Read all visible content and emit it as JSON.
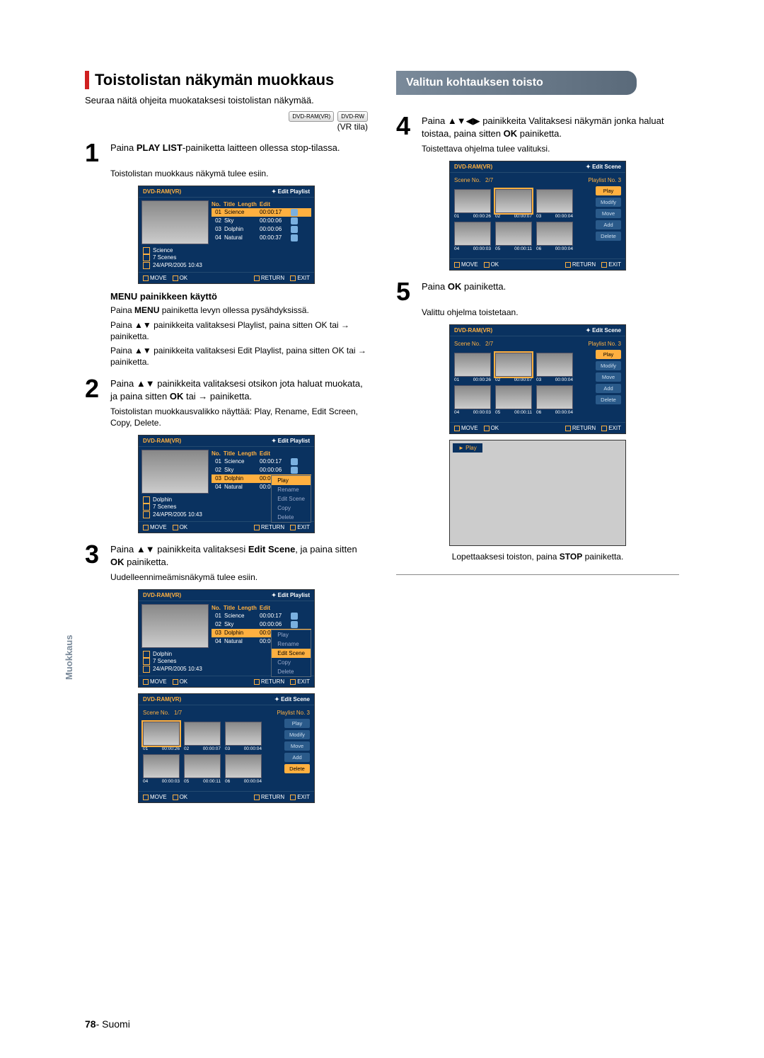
{
  "left": {
    "title": "Toistolistan näkymän muokkaus",
    "intro1": "Seuraa näitä ohjeita muokataksesi toistolistan näkymää.",
    "disc1": "DVD-RAM",
    "disc2": "DVD-RW",
    "vr": "(VR tila)",
    "step1_a": "Paina ",
    "step1_b": "PLAY LIST",
    "step1_c": "-painiketta laitteen ollessa stop-tilassa.",
    "step1_note": "Toistolistan muokkaus näkymä tulee esiin.",
    "menu_head": "MENU painikkeen käyttö",
    "menu_1a": "Paina ",
    "menu_1b": "MENU",
    "menu_1c": " painiketta levyn ollessa pysähdyksissä.",
    "menu_2": "Paina ▲▼ painikkeita valitaksesi Playlist, paina sitten OK tai → painiketta.",
    "menu_3": "Paina ▲▼ painikkeita valitaksesi Edit Playlist, paina sitten OK tai → painiketta.",
    "step2_a": "Paina ▲▼ painikkeita valitaksesi otsikon jota haluat muokata, ja paina sitten ",
    "step2_b": "OK",
    "step2_c": " tai → painiketta.",
    "step2_note": "Toistolistan muokkausvalikko näyttää: Play, Rename, Edit Screen, Copy, Delete.",
    "step3_a": "Paina ▲▼ painikkeita valitaksesi ",
    "step3_b": "Edit Scene",
    "step3_c": ", ja paina sitten ",
    "step3_d": "OK",
    "step3_e": " painiketta.",
    "step3_note": "Uudelleennimeämisnäkymä tulee esiin."
  },
  "right": {
    "banner": "Valitun kohtauksen toisto",
    "step4_a": "Paina ▲▼◀▶ painikkeita Valitaksesi näkymän jonka haluat toistaa, paina sitten ",
    "step4_b": "OK",
    "step4_c": " painiketta.",
    "step4_note": "Toistettava ohjelma tulee valituksi.",
    "step5_a": "Paina ",
    "step5_b": "OK",
    "step5_c": " painiketta.",
    "step5_note": "Valittu ohjelma toistetaan.",
    "stop": "Lopettaaksesi toiston, paina STOP painiketta."
  },
  "osd": {
    "header_left": "DVD-RAM(VR)",
    "header_playlist": "Edit Playlist",
    "header_scene": "Edit Scene",
    "list_head": {
      "no": "No.",
      "title": "Title",
      "len": "Length",
      "edit": "Edit"
    },
    "rows": [
      {
        "no": "01",
        "title": "Science",
        "len": "00:00:17"
      },
      {
        "no": "02",
        "title": "Sky",
        "len": "00:00:06"
      },
      {
        "no": "03",
        "title": "Dolphin",
        "len": "00:00:06"
      },
      {
        "no": "04",
        "title": "Natural",
        "len": "00:00:37"
      }
    ],
    "info_title": "Science",
    "info_title2": "Dolphin",
    "info_scenes": "7 Scenes",
    "info_date": "24/APR/2005 10:43",
    "footer": {
      "move": "MOVE",
      "ok": "OK",
      "return": "RETURN",
      "exit": "EXIT"
    },
    "ctx": {
      "play": "Play",
      "rename": "Rename",
      "editscene": "Edit Scene",
      "copy": "Copy",
      "delete": "Delete"
    },
    "scene": {
      "scene_no_label": "Scene No.",
      "scene_count1": "1/7",
      "scene_count2": "2/7",
      "playlist_no": "Playlist No.  3",
      "thumbs": [
        {
          "n": "01",
          "t": "00:00:26"
        },
        {
          "n": "02",
          "t": "00:00:07"
        },
        {
          "n": "03",
          "t": "00:00:04"
        },
        {
          "n": "04",
          "t": "00:00:03"
        },
        {
          "n": "05",
          "t": "00:00:11"
        },
        {
          "n": "06",
          "t": "00:00:04"
        }
      ],
      "btns": {
        "play": "Play",
        "modify": "Modify",
        "move": "Move",
        "add": "Add",
        "delete": "Delete"
      }
    },
    "play_tag": "► Play"
  },
  "side_tab": "Muokkaus",
  "footer_page": "78",
  "footer_lang": " Suomi"
}
